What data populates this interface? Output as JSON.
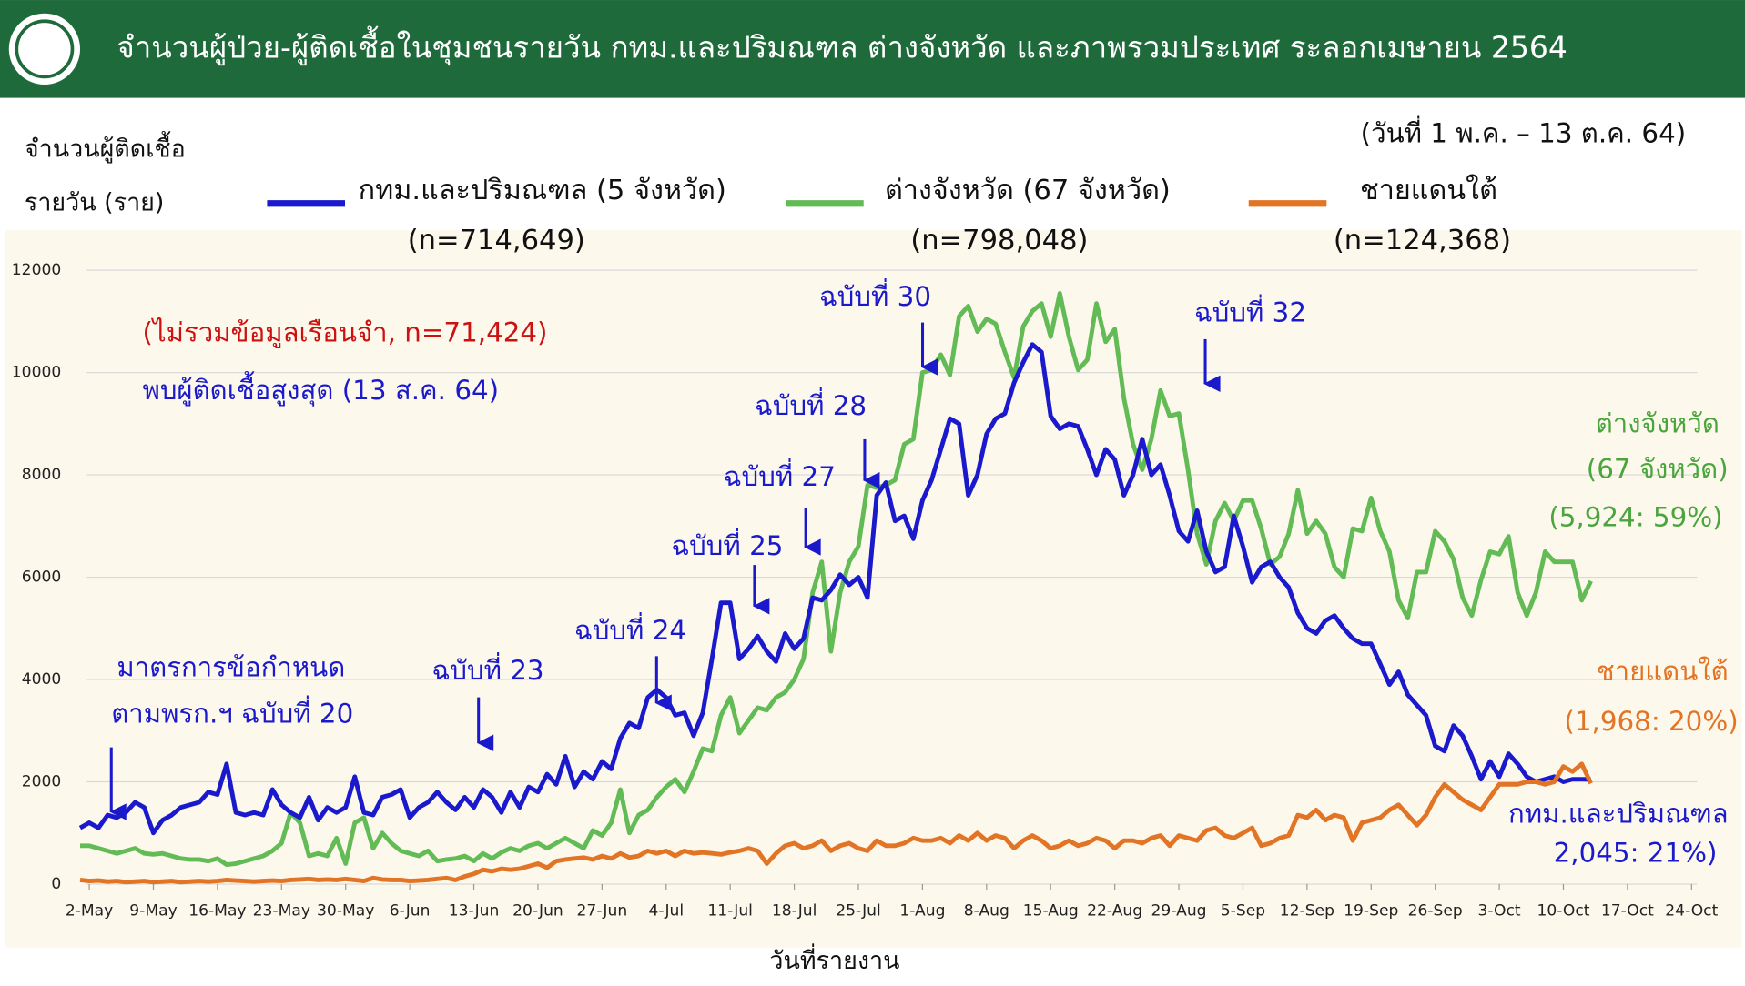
{
  "chart_data": {
    "type": "line",
    "title": "จำนวนผู้ป่วย-ผู้ติดเชื้อในชุมชนรายวัน กทม.และปริมณฑล ต่างจังหวัด และภาพรวมประเทศ ระลอกเมษายน 2564",
    "subtitle": "(วันที่ 1 พ.ค. – 13 ต.ค. 64)",
    "ylabel": [
      "จำนวนผู้ติดเชื้อ",
      "รายวัน (ราย)"
    ],
    "xlabel": "วันที่รายงาน",
    "categories": [
      null,
      "2-May",
      null,
      null,
      null,
      null,
      null,
      null,
      "9-May",
      null,
      null,
      null,
      null,
      null,
      null,
      "16-May",
      null,
      null,
      null,
      null,
      null,
      null,
      "23-May",
      null,
      null,
      null,
      null,
      null,
      null,
      "30-May",
      null,
      null,
      null,
      null,
      null,
      null,
      "6-Jun",
      null,
      null,
      null,
      null,
      null,
      null,
      "13-Jun",
      null,
      null,
      null,
      null,
      null,
      null,
      "20-Jun",
      null,
      null,
      null,
      null,
      null,
      null,
      "27-Jun",
      null,
      null,
      null,
      null,
      null,
      null,
      "4-Jul",
      null,
      null,
      null,
      null,
      null,
      null,
      "11-Jul",
      null,
      null,
      null,
      null,
      null,
      null,
      "18-Jul",
      null,
      null,
      null,
      null,
      null,
      null,
      "25-Jul",
      null,
      null,
      null,
      null,
      null,
      null,
      "1-Aug",
      null,
      null,
      null,
      null,
      null,
      null,
      "8-Aug",
      null,
      null,
      null,
      null,
      null,
      null,
      "15-Aug",
      null,
      null,
      null,
      null,
      null,
      null,
      "22-Aug",
      null,
      null,
      null,
      null,
      null,
      null,
      "29-Aug",
      null,
      null,
      null,
      null,
      null,
      null,
      "5-Sep",
      null,
      null,
      null,
      null,
      null,
      null,
      "12-Sep",
      null,
      null,
      null,
      null,
      null,
      null,
      "19-Sep",
      null,
      null,
      null,
      null,
      null,
      null,
      "26-Sep",
      null,
      null,
      null,
      null,
      null,
      null,
      "3-Oct",
      null,
      null,
      null,
      null,
      null,
      null,
      "10-Oct",
      null,
      null,
      null,
      null,
      null,
      null,
      "17-Oct",
      null,
      null,
      null,
      null,
      null,
      null,
      "24-Oct"
    ],
    "series": [
      {
        "name": "กทม.และปริมณฑล (5 จังหวัด)",
        "total": "(n=714,649)",
        "color": "#1a1acc",
        "values": [
          1100,
          1200,
          1100,
          1350,
          1300,
          1400,
          1600,
          1500,
          1000,
          1250,
          1350,
          1500,
          1550,
          1600,
          1800,
          1750,
          2350,
          1400,
          1350,
          1400,
          1350,
          1850,
          1550,
          1400,
          1300,
          1700,
          1250,
          1500,
          1400,
          1500,
          2100,
          1400,
          1350,
          1700,
          1750,
          1850,
          1300,
          1500,
          1600,
          1800,
          1600,
          1450,
          1700,
          1500,
          1850,
          1700,
          1400,
          1800,
          1500,
          1900,
          1800,
          2150,
          1950,
          2500,
          1900,
          2200,
          2050,
          2400,
          2250,
          2850,
          3150,
          3050,
          3650,
          3800,
          3650,
          3300,
          3350,
          2900,
          3350,
          4400,
          5500,
          5500,
          4400,
          4600,
          4850,
          4550,
          4350,
          4900,
          4600,
          4800,
          5600,
          5550,
          5750,
          6050,
          5850,
          6000,
          5600,
          7600,
          7850,
          7100,
          7200,
          6750,
          7500,
          7900,
          8500,
          9100,
          9000,
          7600,
          8000,
          8800,
          9100,
          9200,
          9800,
          10200,
          10550,
          10400,
          9150,
          8900,
          9000,
          8950,
          8500,
          8000,
          8500,
          8300,
          7600,
          8000,
          8700,
          8000,
          8200,
          7600,
          6900,
          6700,
          7300,
          6500,
          6100,
          6200,
          7200,
          6600,
          5900,
          6200,
          6300,
          6000,
          5800,
          5300,
          5000,
          4900,
          5150,
          5250,
          5000,
          4800,
          4700,
          4700,
          4300,
          3900,
          4150,
          3700,
          3500,
          3300,
          2700,
          2600,
          3100,
          2900,
          2500,
          2050,
          2400,
          2100,
          2550,
          2350,
          2100,
          2000,
          2050,
          2100,
          2000,
          2050,
          2050,
          2045,
          null,
          null,
          null,
          null,
          null,
          null,
          null,
          null,
          null,
          null,
          null
        ]
      },
      {
        "name": "ต่างจังหวัด (67 จังหวัด)",
        "total": "(n=798,048)",
        "color": "#62bb55",
        "values": [
          750,
          750,
          700,
          650,
          600,
          650,
          700,
          600,
          580,
          600,
          550,
          500,
          480,
          480,
          450,
          500,
          380,
          400,
          450,
          500,
          550,
          650,
          800,
          1400,
          1200,
          550,
          600,
          550,
          900,
          400,
          1200,
          1300,
          700,
          1000,
          800,
          650,
          600,
          550,
          650,
          450,
          480,
          500,
          550,
          450,
          600,
          500,
          620,
          700,
          650,
          750,
          800,
          700,
          800,
          900,
          800,
          700,
          1050,
          950,
          1200,
          1850,
          1000,
          1350,
          1450,
          1700,
          1900,
          2050,
          1800,
          2200,
          2650,
          2600,
          3300,
          3650,
          2950,
          3200,
          3450,
          3400,
          3650,
          3750,
          4000,
          4400,
          5700,
          6300,
          4550,
          5700,
          6300,
          6600,
          7800,
          7750,
          7800,
          7900,
          8600,
          8700,
          10000,
          10050,
          10350,
          9950,
          11100,
          11300,
          10800,
          11050,
          10950,
          10400,
          9900,
          10900,
          11200,
          11350,
          10700,
          11550,
          10700,
          10050,
          10250,
          11350,
          10600,
          10850,
          9500,
          8600,
          8100,
          8700,
          9650,
          9150,
          9200,
          8100,
          6850,
          6250,
          7100,
          7450,
          7100,
          7500,
          7500,
          6950,
          6250,
          6400,
          6850,
          7700,
          6850,
          7100,
          6850,
          6200,
          6000,
          6950,
          6900,
          7550,
          6900,
          6500,
          5550,
          5200,
          6100,
          6100,
          6900,
          6700,
          6350,
          5600,
          5250,
          5950,
          6500,
          6450,
          6800,
          5700,
          5250,
          5700,
          6500,
          6300,
          6300,
          6300,
          5550,
          5924,
          null,
          null,
          null,
          null,
          null,
          null,
          null,
          null,
          null,
          null,
          null
        ]
      },
      {
        "name": "ชายแดนใต้",
        "total": "(n=124,368)",
        "color": "#e27425",
        "values": [
          80,
          60,
          70,
          50,
          60,
          40,
          50,
          60,
          40,
          50,
          60,
          40,
          50,
          60,
          50,
          60,
          80,
          70,
          60,
          50,
          60,
          70,
          60,
          80,
          90,
          100,
          80,
          90,
          80,
          100,
          80,
          60,
          120,
          90,
          80,
          80,
          60,
          70,
          80,
          100,
          120,
          80,
          150,
          200,
          280,
          250,
          300,
          280,
          300,
          350,
          400,
          320,
          450,
          480,
          500,
          520,
          480,
          550,
          500,
          600,
          520,
          550,
          650,
          600,
          650,
          550,
          650,
          600,
          620,
          600,
          580,
          620,
          650,
          700,
          650,
          400,
          600,
          750,
          800,
          700,
          750,
          850,
          650,
          750,
          800,
          700,
          650,
          850,
          750,
          750,
          800,
          900,
          850,
          850,
          900,
          800,
          950,
          850,
          1000,
          850,
          950,
          900,
          700,
          850,
          950,
          850,
          700,
          750,
          850,
          750,
          800,
          900,
          850,
          700,
          850,
          850,
          800,
          900,
          950,
          750,
          950,
          900,
          850,
          1050,
          1100,
          950,
          900,
          1000,
          1100,
          750,
          800,
          900,
          950,
          1350,
          1300,
          1450,
          1250,
          1350,
          1300,
          850,
          1200,
          1250,
          1300,
          1450,
          1550,
          1350,
          1150,
          1350,
          1700,
          1950,
          1800,
          1650,
          1550,
          1450,
          1700,
          1950,
          1950,
          1950,
          2000,
          2000,
          1950,
          2000,
          2300,
          2200,
          2350,
          1968,
          null,
          null,
          null,
          null,
          null,
          null,
          null,
          null,
          null,
          null,
          null
        ]
      }
    ],
    "ylim": [
      0,
      12000
    ],
    "yticks": [
      0,
      2000,
      4000,
      6000,
      8000,
      10000,
      12000
    ],
    "grid": true,
    "annotations": [
      "มาตรการข้อกำหนด",
      "ตามพรก.ฯ ฉบับที่ 20",
      "ฉบับที่ 23",
      "ฉบับที่ 24",
      "ฉบับที่ 25",
      "ฉบับที่ 27",
      "ฉบับที่ 28",
      "ฉบับที่ 30",
      "ฉบับที่ 32",
      "(ไม่รวมข้อมูลเรือนจำ, n=71,424)",
      "พบผู้ติดเชื้อสูงสุด (13 ส.ค. 64)",
      "ต่างจังหวัด",
      "(67 จังหวัด)",
      "(5,924: 59%)",
      "ชายแดนใต้",
      "(1,968: 20%)",
      "กทม.และปริมณฑล",
      "2,045: 21%)"
    ]
  }
}
